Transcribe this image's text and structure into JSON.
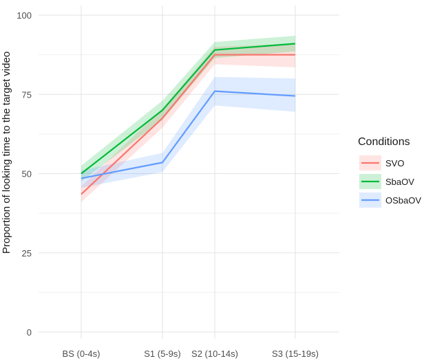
{
  "chart_data": {
    "type": "line",
    "title": "",
    "xlabel": "",
    "ylabel": "Proportion of looking time to the target video",
    "categories": [
      "BS (0-4s)",
      "S1 (5-9s)",
      "S2 (10-14s)",
      "S3 (15-19s)"
    ],
    "ylim": [
      0,
      100
    ],
    "yticks": [
      0,
      25,
      50,
      75,
      100
    ],
    "grid": true,
    "legend_placement": "right",
    "legend_title": "Conditions",
    "series": [
      {
        "name": "SVO",
        "color": "#F8766D",
        "values": [
          43.5,
          67.5,
          87.5,
          87.5
        ],
        "lower": [
          41.0,
          64.5,
          84.5,
          83.5
        ],
        "upper": [
          46.0,
          70.5,
          90.0,
          91.0
        ]
      },
      {
        "name": "SbaOV",
        "color": "#00BA38",
        "values": [
          50.0,
          70.0,
          89.0,
          91.0
        ],
        "lower": [
          47.5,
          67.0,
          86.5,
          88.5
        ],
        "upper": [
          52.5,
          73.0,
          91.5,
          93.5
        ]
      },
      {
        "name": "OSbaOV",
        "color": "#619CFF",
        "values": [
          48.5,
          53.5,
          76.0,
          74.5
        ],
        "lower": [
          45.5,
          50.5,
          71.5,
          69.5
        ],
        "upper": [
          51.0,
          56.5,
          80.5,
          80.0
        ]
      }
    ]
  }
}
